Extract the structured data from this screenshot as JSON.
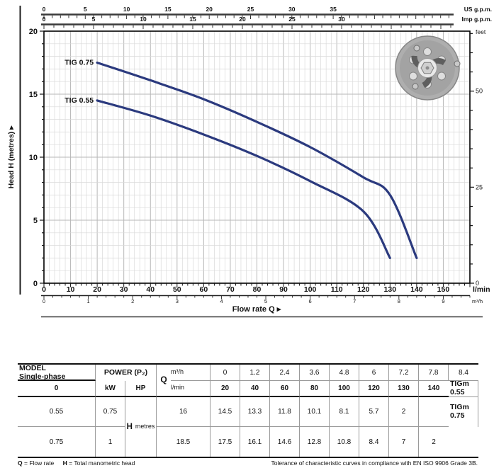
{
  "chart_data": {
    "type": "line",
    "title": "",
    "xlabel": "Flow rate Q  ▸",
    "ylabel": "Head H (metres) ▸",
    "grid": true,
    "axes": {
      "bottom_lmin": {
        "unit": "l/min",
        "ticks": [
          0,
          10,
          20,
          30,
          40,
          50,
          60,
          70,
          80,
          90,
          100,
          110,
          120,
          130,
          140,
          150
        ],
        "range": [
          0,
          160
        ]
      },
      "bottom_m3h": {
        "unit": "m³/h",
        "ticks": [
          0,
          1,
          2,
          3,
          4,
          5,
          6,
          7,
          8,
          9
        ]
      },
      "top_us_gpm": {
        "unit": "US g.p.m.",
        "ticks": [
          0,
          5,
          10,
          15,
          20,
          25,
          30,
          35
        ]
      },
      "top_imp_gpm": {
        "unit": "Imp g.p.m.",
        "ticks": [
          0,
          5,
          10,
          15,
          20,
          25,
          30
        ]
      },
      "left_metres": {
        "ticks": [
          0,
          5,
          10,
          15,
          20
        ],
        "range": [
          0,
          20
        ]
      },
      "right_feet": {
        "unit": "feet",
        "ticks": [
          0,
          25,
          50
        ]
      }
    },
    "series": [
      {
        "name": "TIG 0.75",
        "x_lmin": [
          20,
          40,
          60,
          80,
          100,
          120,
          130,
          140
        ],
        "y_m": [
          17.5,
          16.1,
          14.6,
          12.8,
          10.8,
          8.4,
          7,
          2
        ]
      },
      {
        "name": "TIG 0.55",
        "x_lmin": [
          20,
          40,
          60,
          80,
          100,
          120,
          130
        ],
        "y_m": [
          14.5,
          13.3,
          11.8,
          10.1,
          8.1,
          5.7,
          2
        ]
      }
    ],
    "curve_color": "#2b3a7e"
  },
  "table": {
    "headers": {
      "model": "MODEL",
      "single": "Single-phase",
      "power": "POWER (P₂)",
      "kw": "kW",
      "hp": "HP",
      "q": "Q",
      "m3h": "m³/h",
      "lmin": "l/min",
      "h": "H",
      "metres": "metres"
    },
    "q_m3h": [
      "0",
      "1.2",
      "2.4",
      "3.6",
      "4.8",
      "6",
      "7.2",
      "7.8",
      "8.4"
    ],
    "q_lmin": [
      "0",
      "20",
      "40",
      "60",
      "80",
      "100",
      "120",
      "130",
      "140"
    ],
    "rows": [
      {
        "model": "TIGm 0.55",
        "kw": "0.55",
        "hp": "0.75",
        "values": [
          "16",
          "14.5",
          "13.3",
          "11.8",
          "10.1",
          "8.1",
          "5.7",
          "2",
          ""
        ]
      },
      {
        "model": "TIGm 0.75",
        "kw": "0.75",
        "hp": "1",
        "values": [
          "18.5",
          "17.5",
          "16.1",
          "14.6",
          "12.8",
          "10.8",
          "8.4",
          "7",
          "2"
        ]
      }
    ]
  },
  "footer": {
    "q_label": "Q",
    "q_text": "= Flow rate",
    "h_label": "H",
    "h_text": "= Total manometric head",
    "tolerance": "Tolerance of characteristic curves in compliance with EN ISO 9906 Grade 3B."
  }
}
